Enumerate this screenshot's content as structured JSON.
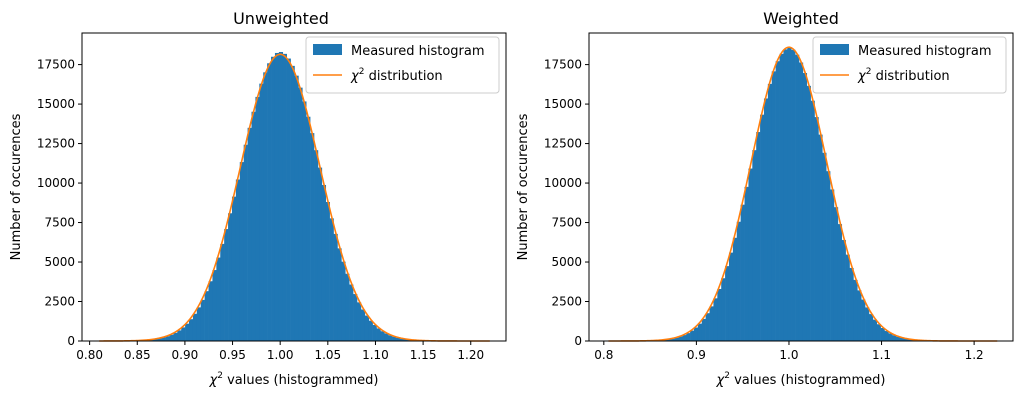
{
  "chart_data": [
    {
      "type": "histogram",
      "title": "Unweighted",
      "xlabel_prefix": "χ",
      "xlabel_sup": "2",
      "xlabel_suffix": " values (histogrammed)",
      "ylabel": "Number of occurences",
      "xlim": [
        0.792,
        1.237
      ],
      "ylim": [
        0,
        19500
      ],
      "xticks": [
        0.8,
        0.85,
        0.9,
        0.95,
        1.0,
        1.05,
        1.1,
        1.15,
        1.2
      ],
      "xtick_labels": [
        "0.80",
        "0.85",
        "0.90",
        "0.95",
        "1.00",
        "1.05",
        "1.10",
        "1.15",
        "1.20"
      ],
      "yticks": [
        0,
        2500,
        5000,
        7500,
        10000,
        12500,
        15000,
        17500
      ],
      "ytick_labels": [
        "0",
        "2500",
        "5000",
        "7500",
        "10000",
        "12500",
        "15000",
        "17500"
      ],
      "hist": {
        "center": 1.0,
        "sigma": 0.0412,
        "peak": 18300,
        "bins": 100,
        "range": [
          0.81,
          1.22
        ],
        "color": "#1f77b4"
      },
      "curve": {
        "center": 1.0,
        "sigma": 0.0418,
        "peak": 18150,
        "range": [
          0.81,
          1.22
        ],
        "color": "#ff7f0e"
      },
      "legend": {
        "placement": "upper right",
        "entries": [
          {
            "label": "Measured histogram",
            "kind": "patch",
            "color": "#1f77b4"
          },
          {
            "label_prefix": "χ",
            "label_sup": "2",
            "label_suffix": " distribution",
            "kind": "line",
            "color": "#ff7f0e"
          }
        ]
      }
    },
    {
      "type": "histogram",
      "title": "Weighted",
      "xlabel_prefix": "χ",
      "xlabel_sup": "2",
      "xlabel_suffix": " values (histogrammed)",
      "ylabel": "Number of occurences",
      "xlim": [
        0.784,
        1.242
      ],
      "ylim": [
        0,
        19500
      ],
      "xticks": [
        0.8,
        0.9,
        1.0,
        1.1,
        1.2
      ],
      "xtick_labels": [
        "0.8",
        "0.9",
        "1.0",
        "1.1",
        "1.2"
      ],
      "yticks": [
        0,
        2500,
        5000,
        7500,
        10000,
        12500,
        15000,
        17500
      ],
      "ytick_labels": [
        "0",
        "2500",
        "5000",
        "7500",
        "10000",
        "12500",
        "15000",
        "17500"
      ],
      "hist": {
        "center": 1.0,
        "sigma": 0.0405,
        "peak": 18550,
        "bins": 100,
        "range": [
          0.805,
          1.225
        ],
        "color": "#1f77b4"
      },
      "curve": {
        "center": 1.0,
        "sigma": 0.041,
        "peak": 18600,
        "range": [
          0.805,
          1.225
        ],
        "color": "#ff7f0e"
      },
      "legend": {
        "placement": "upper right",
        "entries": [
          {
            "label": "Measured histogram",
            "kind": "patch",
            "color": "#1f77b4"
          },
          {
            "label_prefix": "χ",
            "label_sup": "2",
            "label_suffix": " distribution",
            "kind": "line",
            "color": "#ff7f0e"
          }
        ]
      }
    }
  ]
}
